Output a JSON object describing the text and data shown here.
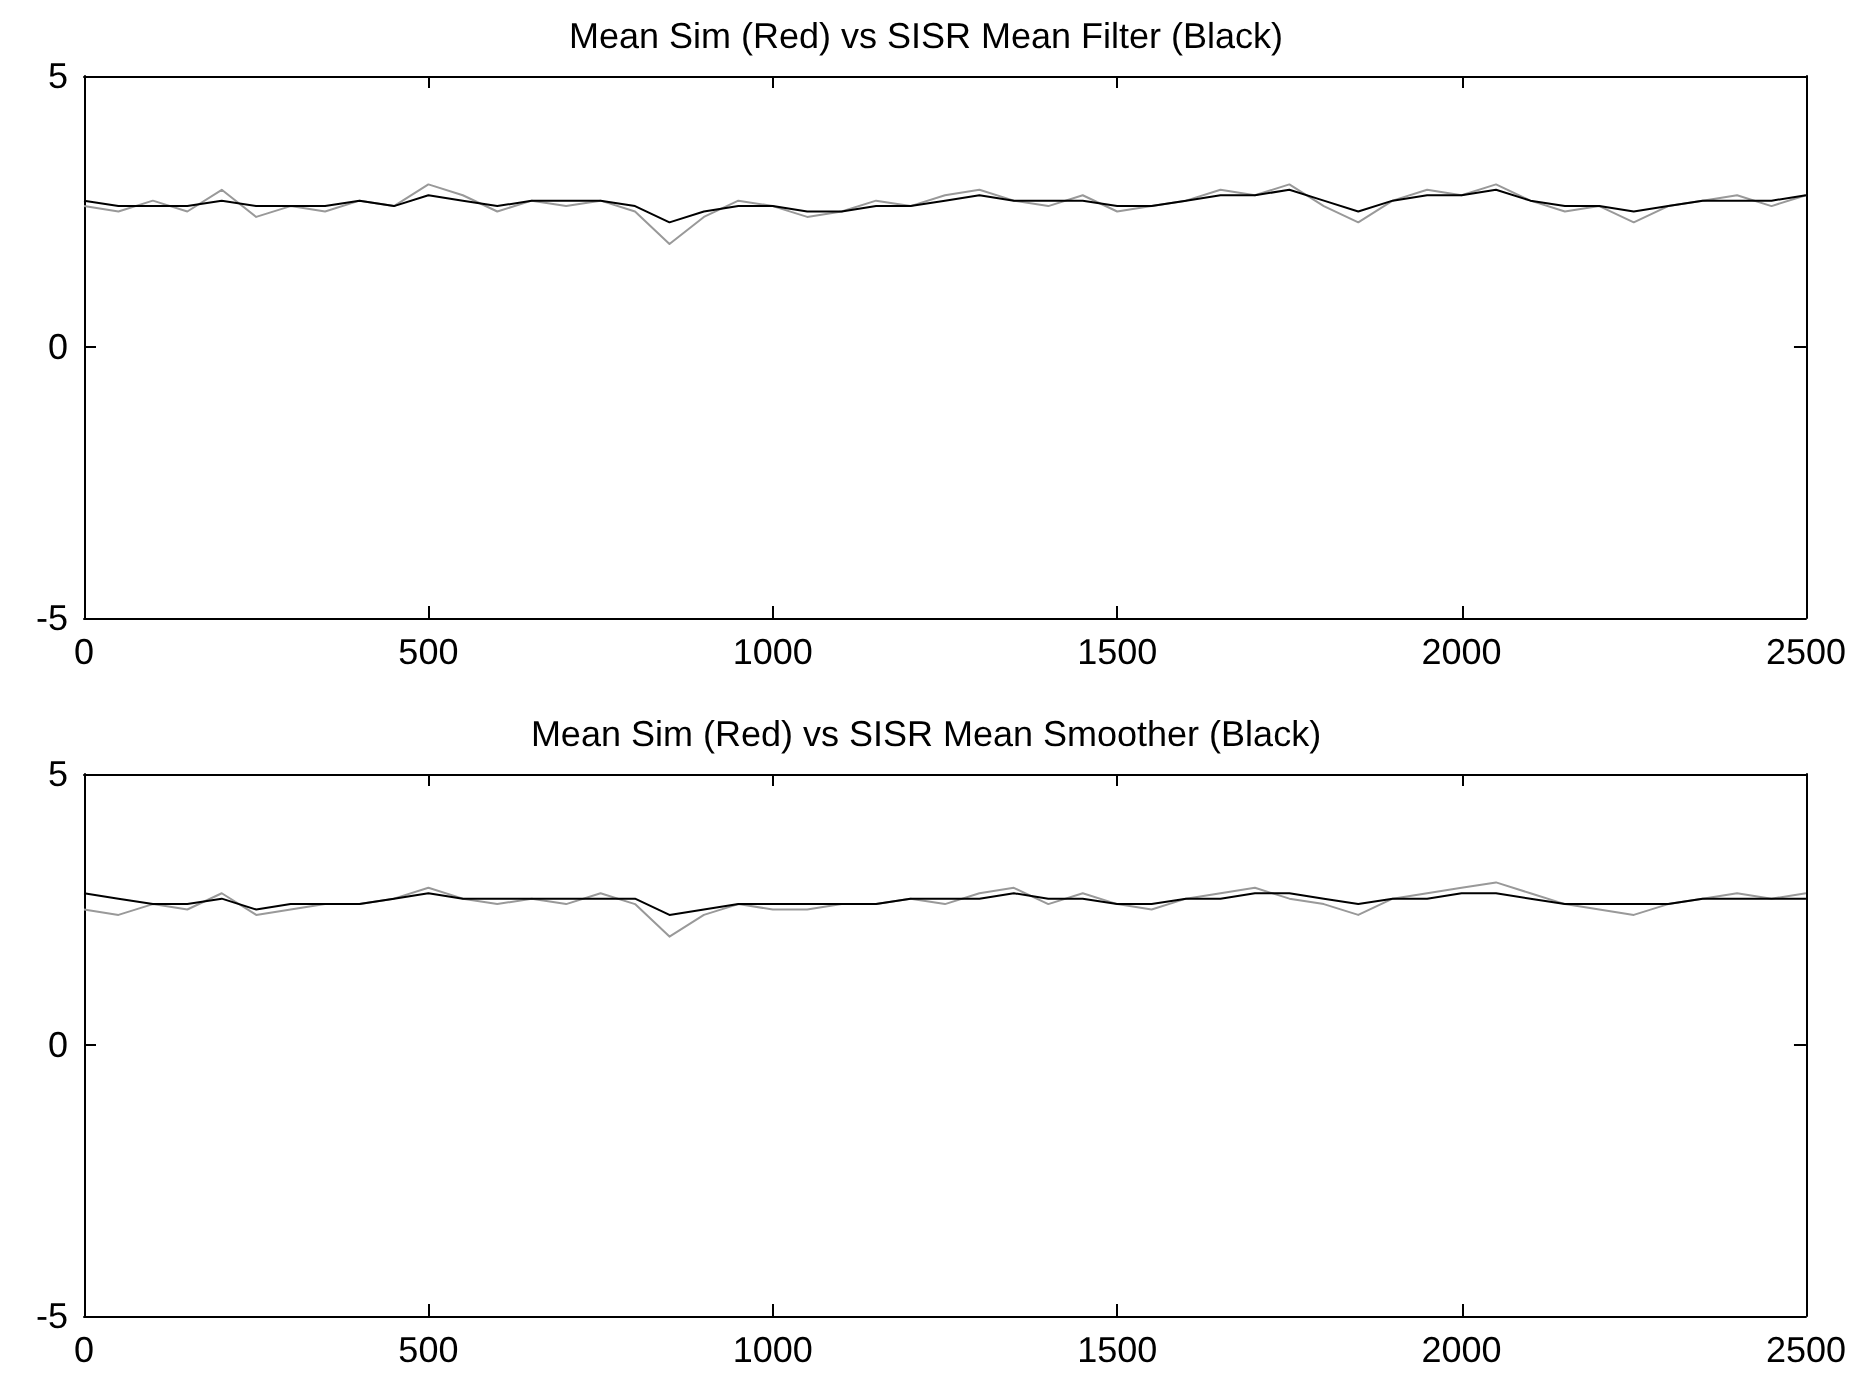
{
  "chart_data": [
    {
      "type": "line",
      "title": "Mean Sim (Red) vs SISR Mean Filter (Black)",
      "x": [
        0,
        50,
        100,
        150,
        200,
        250,
        300,
        350,
        400,
        450,
        500,
        550,
        600,
        650,
        700,
        750,
        800,
        850,
        900,
        950,
        1000,
        1050,
        1100,
        1150,
        1200,
        1250,
        1300,
        1350,
        1400,
        1450,
        1500,
        1550,
        1600,
        1650,
        1700,
        1750,
        1800,
        1850,
        1900,
        1950,
        2000,
        2050,
        2100,
        2150,
        2200,
        2250,
        2300,
        2350,
        2400,
        2450,
        2500
      ],
      "series": [
        {
          "color": "#999999",
          "values": [
            2.6,
            2.5,
            2.7,
            2.5,
            2.9,
            2.4,
            2.6,
            2.5,
            2.7,
            2.6,
            3.0,
            2.8,
            2.5,
            2.7,
            2.6,
            2.7,
            2.5,
            1.9,
            2.4,
            2.7,
            2.6,
            2.4,
            2.5,
            2.7,
            2.6,
            2.8,
            2.9,
            2.7,
            2.6,
            2.8,
            2.5,
            2.6,
            2.7,
            2.9,
            2.8,
            3.0,
            2.6,
            2.3,
            2.7,
            2.9,
            2.8,
            3.0,
            2.7,
            2.5,
            2.6,
            2.3,
            2.6,
            2.7,
            2.8,
            2.6,
            2.8
          ]
        },
        {
          "color": "#000000",
          "values": [
            2.7,
            2.6,
            2.6,
            2.6,
            2.7,
            2.6,
            2.6,
            2.6,
            2.7,
            2.6,
            2.8,
            2.7,
            2.6,
            2.7,
            2.7,
            2.7,
            2.6,
            2.3,
            2.5,
            2.6,
            2.6,
            2.5,
            2.5,
            2.6,
            2.6,
            2.7,
            2.8,
            2.7,
            2.7,
            2.7,
            2.6,
            2.6,
            2.7,
            2.8,
            2.8,
            2.9,
            2.7,
            2.5,
            2.7,
            2.8,
            2.8,
            2.9,
            2.7,
            2.6,
            2.6,
            2.5,
            2.6,
            2.7,
            2.7,
            2.7,
            2.8
          ]
        }
      ],
      "xlim": [
        0,
        2500
      ],
      "xticks": [
        0,
        500,
        1000,
        1500,
        2000,
        2500
      ],
      "ylim": [
        -5,
        5
      ],
      "yticks": [
        -5,
        0,
        5
      ],
      "grid": false,
      "marker": "none",
      "line_style": "solid"
    },
    {
      "type": "line",
      "title": "Mean Sim (Red) vs SISR Mean Smoother (Black)",
      "x": [
        0,
        50,
        100,
        150,
        200,
        250,
        300,
        350,
        400,
        450,
        500,
        550,
        600,
        650,
        700,
        750,
        800,
        850,
        900,
        950,
        1000,
        1050,
        1100,
        1150,
        1200,
        1250,
        1300,
        1350,
        1400,
        1450,
        1500,
        1550,
        1600,
        1650,
        1700,
        1750,
        1800,
        1850,
        1900,
        1950,
        2000,
        2050,
        2100,
        2150,
        2200,
        2250,
        2300,
        2350,
        2400,
        2450,
        2500
      ],
      "series": [
        {
          "color": "#999999",
          "values": [
            2.5,
            2.4,
            2.6,
            2.5,
            2.8,
            2.4,
            2.5,
            2.6,
            2.6,
            2.7,
            2.9,
            2.7,
            2.6,
            2.7,
            2.6,
            2.8,
            2.6,
            2.0,
            2.4,
            2.6,
            2.5,
            2.5,
            2.6,
            2.6,
            2.7,
            2.6,
            2.8,
            2.9,
            2.6,
            2.8,
            2.6,
            2.5,
            2.7,
            2.8,
            2.9,
            2.7,
            2.6,
            2.4,
            2.7,
            2.8,
            2.9,
            3.0,
            2.8,
            2.6,
            2.5,
            2.4,
            2.6,
            2.7,
            2.8,
            2.7,
            2.8
          ]
        },
        {
          "color": "#000000",
          "values": [
            2.8,
            2.7,
            2.6,
            2.6,
            2.7,
            2.5,
            2.6,
            2.6,
            2.6,
            2.7,
            2.8,
            2.7,
            2.7,
            2.7,
            2.7,
            2.7,
            2.7,
            2.4,
            2.5,
            2.6,
            2.6,
            2.6,
            2.6,
            2.6,
            2.7,
            2.7,
            2.7,
            2.8,
            2.7,
            2.7,
            2.6,
            2.6,
            2.7,
            2.7,
            2.8,
            2.8,
            2.7,
            2.6,
            2.7,
            2.7,
            2.8,
            2.8,
            2.7,
            2.6,
            2.6,
            2.6,
            2.6,
            2.7,
            2.7,
            2.7,
            2.7
          ]
        }
      ],
      "xlim": [
        0,
        2500
      ],
      "xticks": [
        0,
        500,
        1000,
        1500,
        2000,
        2500
      ],
      "ylim": [
        -5,
        5
      ],
      "yticks": [
        -5,
        0,
        5
      ],
      "grid": false,
      "marker": "none",
      "line_style": "solid"
    }
  ]
}
